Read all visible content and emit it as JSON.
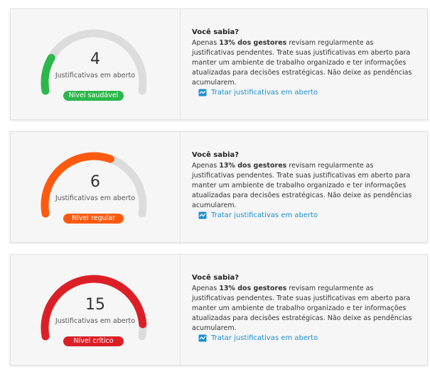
{
  "cards": [
    {
      "value": 4,
      "caption": "Justificativas em aberto",
      "level": "Nível saudável",
      "tip_title": "Você sabia?",
      "tip_prefix": "Apenas",
      "tip_bold": "13% dos gestores",
      "tip_rest": "revisam regularmente as justificativas pendentes. Trate suas justificativas em aberto para manter um ambiente de trabalho organizado e ter informações atualizadas para decisões estratégicas. Não deixe as pendências acumularem.",
      "link": "Tratar justificativas em aberto"
    },
    {
      "value": 6,
      "caption": "Justificativas em aberto",
      "level": "Nível regular",
      "tip_title": "Você sabia?",
      "tip_prefix": "Apenas",
      "tip_bold": "13% dos gestores",
      "tip_rest": "revisam regularmente as justificativas pendentes. Trate suas justificativas em aberto para manter um ambiente de trabalho organizado e ter informações atualizadas para decisões estratégicas. Não deixe as pendências acumularem.",
      "link": "Tratar justificativas em aberto"
    },
    {
      "value": 15,
      "caption": "Justificativas em aberto",
      "level": "Nível crítico",
      "tip_title": "Você sabia?",
      "tip_prefix": "Apenas",
      "tip_bold": "13% dos gestores",
      "tip_rest": "revisam regularmente as justificativas pendentes. Trate suas justificativas em aberto para manter um ambiente de trabalho organizado e ter informações atualizadas para decisões estratégicas. Não deixe as pendências acumularem.",
      "link": "Tratar justificativas em aberto"
    }
  ]
}
